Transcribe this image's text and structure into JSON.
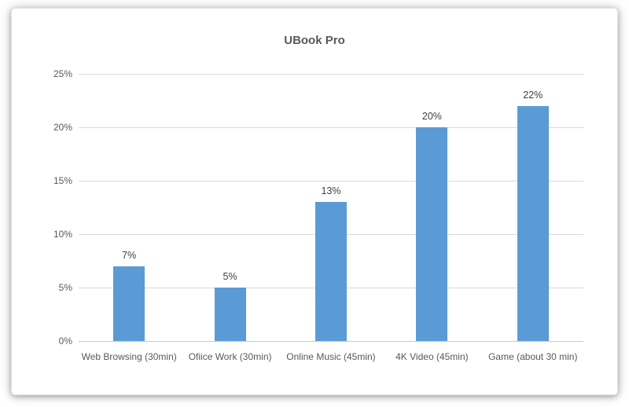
{
  "chart_data": {
    "type": "bar",
    "title": "UBook Pro",
    "categories": [
      "Web Browsing (30min)",
      "Ofiice Work (30min)",
      "Online Music (45min)",
      "4K Video (45min)",
      "Game (about 30 min)"
    ],
    "values": [
      7,
      5,
      13,
      20,
      22
    ],
    "data_labels": [
      "7%",
      "5%",
      "13%",
      "20%",
      "22%"
    ],
    "xlabel": "",
    "ylabel": "",
    "ylim": [
      0,
      25
    ],
    "y_tick_values": [
      0,
      5,
      10,
      15,
      20,
      25
    ],
    "y_tick_labels": [
      "0%",
      "5%",
      "10%",
      "15%",
      "20%",
      "25%"
    ],
    "grid": true,
    "legend": false,
    "colors": {
      "bar": "#5b9bd5",
      "gridline": "#d9d9d9",
      "axis_line": "#c9c9c9",
      "title_text": "#595959",
      "tick_text": "#595959",
      "data_label_text": "#404040"
    }
  }
}
